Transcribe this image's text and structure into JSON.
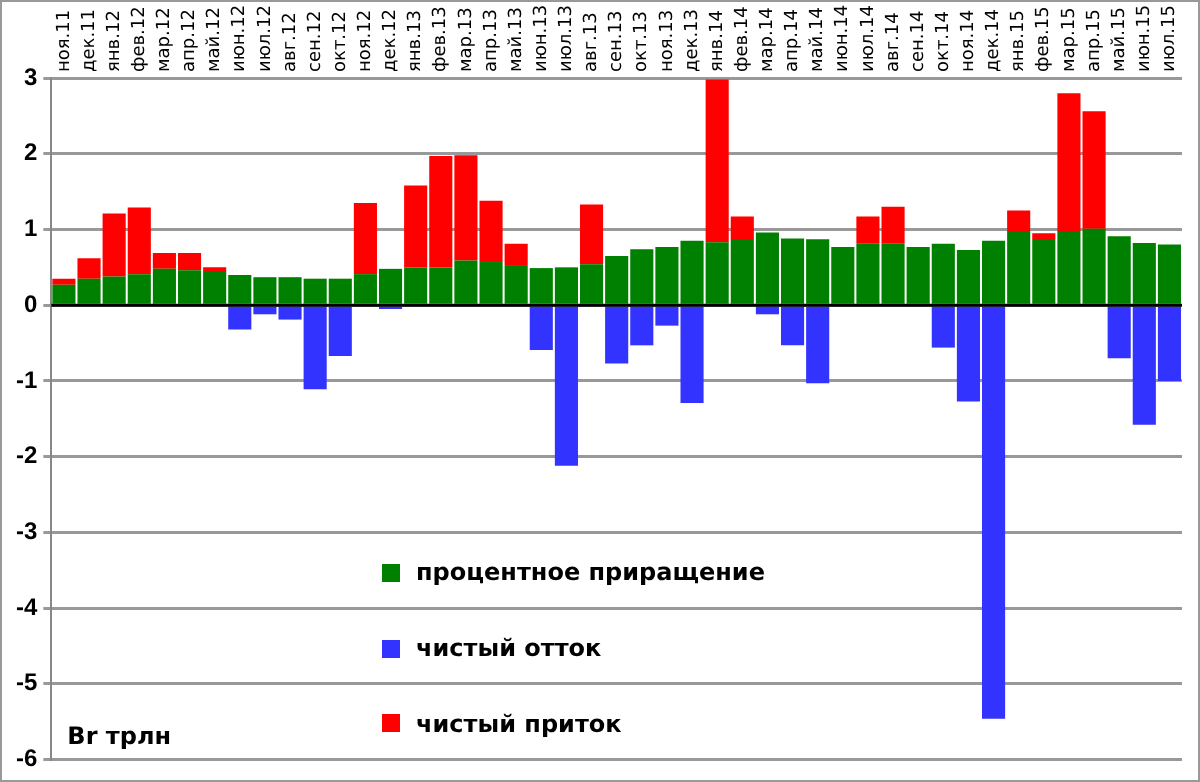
{
  "chart_data": {
    "type": "bar",
    "stacked": true,
    "categories": [
      "ноя.11",
      "дек.11",
      "янв.12",
      "фев.12",
      "мар.12",
      "апр.12",
      "май.12",
      "июн.12",
      "июл.12",
      "авг.12",
      "сен.12",
      "окт.12",
      "ноя.12",
      "дек.12",
      "янв.13",
      "фев.13",
      "мар.13",
      "апр.13",
      "май.13",
      "июн.13",
      "июл.13",
      "авг.13",
      "сен.13",
      "окт.13",
      "ноя.13",
      "дек.13",
      "янв.14",
      "фев.14",
      "мар.14",
      "апр.14",
      "май.14",
      "июн.14",
      "июл.14",
      "авг.14",
      "сен.14",
      "окт.14",
      "ноя.14",
      "дек.14",
      "янв.15",
      "фев.15",
      "мар.15",
      "апр.15",
      "май.15",
      "июн.15",
      "июл.15"
    ],
    "series": [
      {
        "name": "процентное приращение",
        "color": "#008000",
        "values": [
          0.27,
          0.35,
          0.38,
          0.41,
          0.48,
          0.46,
          0.45,
          0.4,
          0.37,
          0.37,
          0.35,
          0.35,
          0.41,
          0.48,
          0.5,
          0.5,
          0.59,
          0.57,
          0.53,
          0.49,
          0.5,
          0.54,
          0.65,
          0.74,
          0.77,
          0.85,
          0.83,
          0.86,
          0.96,
          0.88,
          0.87,
          0.77,
          0.81,
          0.81,
          0.77,
          0.81,
          0.73,
          0.85,
          0.98,
          0.86,
          0.98,
          1.01,
          0.91,
          0.82,
          0.8
        ]
      },
      {
        "name": "чистый отток",
        "color": "#3333ff",
        "values": [
          null,
          null,
          null,
          null,
          null,
          null,
          null,
          -0.32,
          -0.12,
          -0.19,
          -1.11,
          -0.67,
          null,
          -0.05,
          null,
          null,
          null,
          null,
          null,
          -0.59,
          -2.12,
          null,
          -0.77,
          -0.53,
          -0.27,
          -1.29,
          null,
          null,
          -0.12,
          -0.53,
          -1.03,
          null,
          null,
          null,
          null,
          -0.56,
          -1.27,
          -5.46,
          null,
          null,
          null,
          null,
          -0.7,
          -1.58,
          -1.0
        ]
      },
      {
        "name": "чистый приток",
        "color": "#ff0000",
        "values": [
          0.08,
          0.27,
          0.83,
          0.88,
          0.21,
          0.23,
          0.05,
          null,
          null,
          null,
          null,
          null,
          0.94,
          null,
          1.08,
          1.47,
          1.39,
          0.81,
          0.28,
          null,
          null,
          0.79,
          null,
          null,
          null,
          null,
          2.15,
          0.31,
          null,
          null,
          null,
          null,
          0.36,
          0.49,
          null,
          null,
          null,
          null,
          0.27,
          0.09,
          1.82,
          1.55,
          null,
          null,
          null
        ]
      }
    ],
    "ylim": [
      -6,
      3
    ],
    "yticks": [
      -6,
      -5,
      -4,
      -3,
      -2,
      -1,
      0,
      1,
      2,
      3
    ],
    "grid": "y",
    "legend": "bottom left",
    "annotations": [
      "Br трлн"
    ]
  }
}
